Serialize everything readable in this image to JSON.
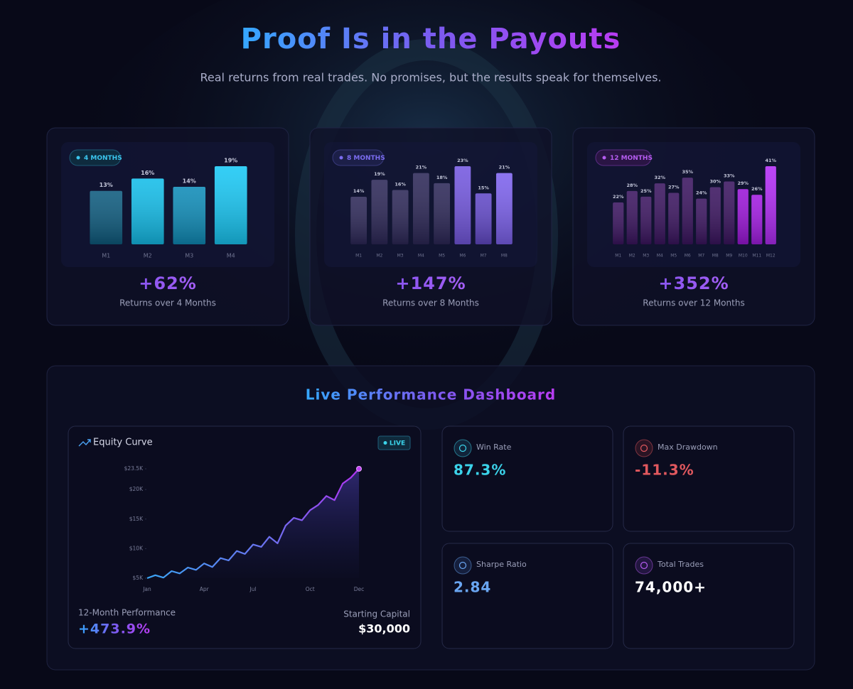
{
  "header": {
    "title": "Proof Is in the Payouts",
    "subtitle": "Real returns from real trades. No promises, but the results speak for themselves."
  },
  "cards": [
    {
      "badge": "4 MONTHS",
      "total": "+62%",
      "caption": "Returns over 4 Months"
    },
    {
      "badge": "8 MONTHS",
      "total": "+147%",
      "caption": "Returns over 8 Months"
    },
    {
      "badge": "12 MONTHS",
      "total": "+352%",
      "caption": "Returns over 12 Months"
    }
  ],
  "chart_data": [
    {
      "type": "bar",
      "categories": [
        "M1",
        "M2",
        "M3",
        "M4"
      ],
      "values": [
        13,
        16,
        14,
        19
      ],
      "value_labels": [
        "13%",
        "16%",
        "14%",
        "19%"
      ],
      "colors": [
        "#0e5b7e",
        "#14bde9",
        "#0f8cb8",
        "#19c8f5"
      ]
    },
    {
      "type": "bar",
      "categories": [
        "M1",
        "M2",
        "M3",
        "M4",
        "M5",
        "M6",
        "M7",
        "M8"
      ],
      "values": [
        14,
        19,
        16,
        21,
        18,
        23,
        15,
        21
      ],
      "value_labels": [
        "14%",
        "19%",
        "16%",
        "21%",
        "18%",
        "23%",
        "15%",
        "21%"
      ],
      "colors": [
        "#2d2858",
        "#2d2858",
        "#2d2858",
        "#2d2858",
        "#2d2858",
        "#7458e0",
        "#6249c8",
        "#7d62ee"
      ]
    },
    {
      "type": "bar",
      "categories": [
        "M1",
        "M2",
        "M3",
        "M4",
        "M5",
        "M6",
        "M7",
        "M8",
        "M9",
        "M10",
        "M11",
        "M12"
      ],
      "values": [
        22,
        28,
        25,
        32,
        27,
        35,
        24,
        30,
        33,
        29,
        26,
        41
      ],
      "value_labels": [
        "22%",
        "28%",
        "25%",
        "32%",
        "27%",
        "35%",
        "24%",
        "30%",
        "33%",
        "29%",
        "26%",
        "41%"
      ],
      "colors": [
        "#3b1560",
        "#3b1560",
        "#3b1560",
        "#3b1560",
        "#3b1560",
        "#3b1560",
        "#3b1560",
        "#3b1560",
        "#3b1560",
        "#9b16d8",
        "#a21ce2",
        "#b22cf6"
      ]
    },
    {
      "type": "line",
      "title": "Equity Curve",
      "categories": [
        "Jan",
        null,
        null,
        null,
        null,
        null,
        null,
        "Apr",
        null,
        null,
        null,
        null,
        null,
        "Jul",
        null,
        null,
        null,
        null,
        null,
        null,
        "Oct",
        null,
        null,
        null,
        null,
        null,
        "Dec"
      ],
      "values": [
        5000,
        5500,
        5100,
        6200,
        5800,
        6800,
        6400,
        7500,
        6900,
        8400,
        8000,
        9600,
        9100,
        10700,
        10300,
        12000,
        10900,
        13900,
        15200,
        14800,
        16500,
        17400,
        18900,
        18200,
        21000,
        22000,
        23500
      ],
      "ylim": [
        5000,
        23500
      ],
      "yticks": [
        {
          "value": 5000,
          "label": "$5K"
        },
        {
          "value": 10000,
          "label": "$10K"
        },
        {
          "value": 15000,
          "label": "$15K"
        },
        {
          "value": 20000,
          "label": "$20K"
        },
        {
          "value": 23500,
          "label": "$23.5K"
        }
      ],
      "color": "#4aa3f5"
    }
  ],
  "dashboard": {
    "title": "Live Performance Dashboard",
    "live_badge": "LIVE",
    "performance_label": "12-Month Performance",
    "performance_value": "+473.9%",
    "capital_label": "Starting Capital",
    "capital_value": "$30,000",
    "stats": [
      {
        "label": "Win Rate",
        "value": "87.3%",
        "color": "#3bd3ea"
      },
      {
        "label": "Max Drawdown",
        "value": "-11.3%",
        "color": "#e0585e"
      },
      {
        "label": "Sharpe Ratio",
        "value": "2.84",
        "color": "#6aa6f2"
      },
      {
        "label": "Total Trades",
        "value": "74,000+",
        "color": "#ffffff"
      }
    ]
  }
}
